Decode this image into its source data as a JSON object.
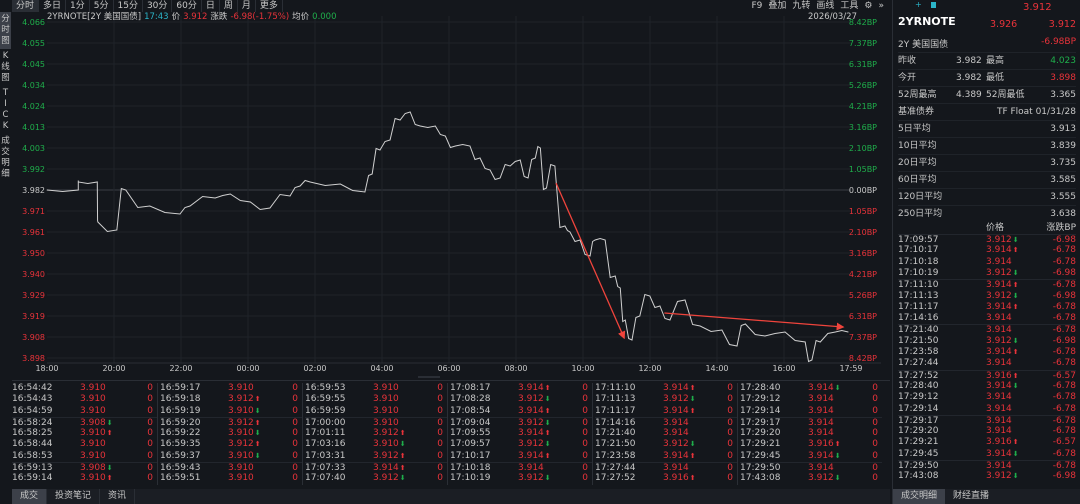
{
  "toolbar": {
    "items": [
      "分时",
      "多日",
      "1分",
      "5分",
      "15分",
      "30分",
      "60分",
      "日",
      "周",
      "月",
      "更多"
    ],
    "right_items": [
      "F9",
      "叠加",
      "九转",
      "画线",
      "工具"
    ]
  },
  "left_tabs": [
    "分\n时\n图",
    "K\n线\n图",
    "T\nI\nC\nK",
    "成\n交\n明\n细"
  ],
  "header": {
    "symbol": "2YRNOTE[2Y 美国国债]",
    "time": "17:43",
    "price_label": "价",
    "price": "3.912",
    "change_label": "涨跌",
    "change": "-6.98(-1.75%)",
    "avg_label": "均价",
    "avg": "0.000",
    "date": "2026/03/27"
  },
  "colors": {
    "up": "#e8333a",
    "down": "#1fae4b",
    "line": "#d0d0d0",
    "arrow": "#f0443c",
    "bg": "#14171c"
  },
  "chart_data": {
    "type": "line",
    "y_ticks": [
      "4.066",
      "4.055",
      "4.045",
      "4.034",
      "4.024",
      "4.013",
      "4.003",
      "3.992",
      "3.982",
      "3.971",
      "3.961",
      "3.950",
      "3.940",
      "3.929",
      "3.919",
      "3.908",
      "3.898"
    ],
    "y_right_ticks": [
      "8.42BP",
      "7.37BP",
      "6.31BP",
      "5.26BP",
      "4.21BP",
      "3.16BP",
      "2.10BP",
      "1.05BP",
      "0.00BP",
      "1.05BP",
      "2.10BP",
      "3.16BP",
      "4.21BP",
      "5.26BP",
      "6.31BP",
      "7.37BP",
      "8.42BP"
    ],
    "x_ticks": [
      "18:00",
      "20:00",
      "22:00",
      "00:00",
      "02:00",
      "04:00",
      "06:00",
      "08:00",
      "10:00",
      "12:00",
      "14:00",
      "16:00",
      "17:59"
    ],
    "ylim": [
      3.898,
      4.066
    ],
    "prev_close": 3.982,
    "grid": true,
    "points": [
      [
        "18:00",
        3.982
      ],
      [
        "18:56",
        3.982
      ],
      [
        "18:56",
        3.986
      ],
      [
        "19:30",
        3.986
      ],
      [
        "19:31",
        3.966
      ],
      [
        "20:05",
        3.962
      ],
      [
        "20:21",
        3.982
      ],
      [
        "21:04",
        3.974
      ],
      [
        "21:58",
        3.97
      ],
      [
        "22:16",
        3.974
      ],
      [
        "23:01",
        3.978
      ],
      [
        "23:28",
        3.98
      ],
      [
        "00:04",
        3.976
      ],
      [
        "00:39",
        3.973
      ],
      [
        "01:15",
        3.979
      ],
      [
        "01:33",
        3.984
      ],
      [
        "01:51",
        3.986
      ],
      [
        "02:45",
        3.985
      ],
      [
        "03:29",
        3.981
      ],
      [
        "03:42",
        3.99
      ],
      [
        "03:56",
        4.002
      ],
      [
        "04:14",
        4.007
      ],
      [
        "04:32",
        4.017
      ],
      [
        "04:50",
        4.021
      ],
      [
        "05:08",
        4.014
      ],
      [
        "05:35",
        4.014
      ],
      [
        "05:53",
        4.009
      ],
      [
        "06:11",
        4.004
      ],
      [
        "06:37",
        4.004
      ],
      [
        "06:55",
        3.998
      ],
      [
        "07:13",
        3.992
      ],
      [
        "07:31",
        3.988
      ],
      [
        "07:49",
        3.994
      ],
      [
        "08:07",
        3.997
      ],
      [
        "08:21",
        3.988
      ],
      [
        "08:34",
        3.998
      ],
      [
        "08:43",
        4.003
      ],
      [
        "08:54",
        3.983
      ],
      [
        "09:09",
        3.994
      ],
      [
        "09:27",
        3.964
      ],
      [
        "09:36",
        3.961
      ],
      [
        "09:54",
        3.957
      ],
      [
        "10:12",
        3.949
      ],
      [
        "10:21",
        3.957
      ],
      [
        "10:39",
        3.957
      ],
      [
        "10:57",
        3.939
      ],
      [
        "11:06",
        3.933
      ],
      [
        "11:15",
        3.917
      ],
      [
        "11:27",
        3.907
      ],
      [
        "11:41",
        3.919
      ],
      [
        "11:59",
        3.929
      ],
      [
        "12:17",
        3.924
      ],
      [
        "12:35",
        3.917
      ],
      [
        "13:02",
        3.927
      ],
      [
        "13:29",
        3.914
      ],
      [
        "14:08",
        3.912
      ],
      [
        "14:35",
        3.904
      ],
      [
        "14:50",
        3.915
      ],
      [
        "15:25",
        3.909
      ],
      [
        "16:01",
        3.911
      ],
      [
        "16:37",
        3.906
      ],
      [
        "16:49",
        3.897
      ],
      [
        "17:04",
        3.906
      ],
      [
        "17:31",
        3.911
      ],
      [
        "17:54",
        3.911
      ]
    ],
    "annotations": [
      {
        "type": "arrow",
        "from": [
          "09:11",
          3.9855
        ],
        "to": [
          "11:13",
          3.908
        ]
      },
      {
        "type": "arrow",
        "from": [
          "12:25",
          3.9205
        ],
        "to": [
          "17:45",
          3.9135
        ]
      }
    ]
  },
  "trades": [
    [
      [
        "16:54:42",
        "3.910",
        ""
      ],
      [
        "16:54:43",
        "3.910",
        ""
      ],
      [
        "16:54:59",
        "3.910",
        ""
      ],
      [
        "16:58:24",
        "3.908",
        "down"
      ],
      [
        "16:58:25",
        "3.910",
        "up"
      ],
      [
        "16:58:44",
        "3.910",
        ""
      ],
      [
        "16:58:53",
        "3.910",
        ""
      ],
      [
        "16:59:13",
        "3.908",
        "down"
      ],
      [
        "16:59:14",
        "3.910",
        "up"
      ]
    ],
    [
      [
        "16:59:17",
        "3.910",
        ""
      ],
      [
        "16:59:18",
        "3.912",
        "up"
      ],
      [
        "16:59:19",
        "3.910",
        "down"
      ],
      [
        "16:59:20",
        "3.912",
        "up"
      ],
      [
        "16:59:22",
        "3.910",
        "down"
      ],
      [
        "16:59:35",
        "3.912",
        "up"
      ],
      [
        "16:59:37",
        "3.910",
        "down"
      ],
      [
        "16:59:43",
        "3.910",
        ""
      ],
      [
        "16:59:51",
        "3.910",
        ""
      ]
    ],
    [
      [
        "16:59:53",
        "3.910",
        ""
      ],
      [
        "16:59:55",
        "3.910",
        ""
      ],
      [
        "16:59:59",
        "3.910",
        ""
      ],
      [
        "17:00:00",
        "3.910",
        ""
      ],
      [
        "17:01:11",
        "3.912",
        "up"
      ],
      [
        "17:03:16",
        "3.910",
        "down"
      ],
      [
        "17:03:31",
        "3.912",
        "up"
      ],
      [
        "17:07:33",
        "3.914",
        "up"
      ],
      [
        "17:07:40",
        "3.912",
        "down"
      ]
    ],
    [
      [
        "17:08:17",
        "3.914",
        "up"
      ],
      [
        "17:08:28",
        "3.912",
        "down"
      ],
      [
        "17:08:54",
        "3.914",
        "up"
      ],
      [
        "17:09:04",
        "3.912",
        "down"
      ],
      [
        "17:09:55",
        "3.914",
        "up"
      ],
      [
        "17:09:57",
        "3.912",
        "down"
      ],
      [
        "17:10:17",
        "3.914",
        "up"
      ],
      [
        "17:10:18",
        "3.914",
        ""
      ],
      [
        "17:10:19",
        "3.912",
        "down"
      ]
    ],
    [
      [
        "17:11:10",
        "3.914",
        "up"
      ],
      [
        "17:11:13",
        "3.912",
        "down"
      ],
      [
        "17:11:17",
        "3.914",
        "up"
      ],
      [
        "17:14:16",
        "3.914",
        ""
      ],
      [
        "17:21:40",
        "3.914",
        ""
      ],
      [
        "17:21:50",
        "3.912",
        "down"
      ],
      [
        "17:23:58",
        "3.914",
        "up"
      ],
      [
        "17:27:44",
        "3.914",
        ""
      ],
      [
        "17:27:52",
        "3.916",
        "up"
      ]
    ],
    [
      [
        "17:28:40",
        "3.914",
        "down"
      ],
      [
        "17:29:12",
        "3.914",
        ""
      ],
      [
        "17:29:14",
        "3.914",
        ""
      ],
      [
        "17:29:17",
        "3.914",
        ""
      ],
      [
        "17:29:20",
        "3.914",
        ""
      ],
      [
        "17:29:21",
        "3.916",
        "up"
      ],
      [
        "17:29:45",
        "3.914",
        "down"
      ],
      [
        "17:29:50",
        "3.914",
        ""
      ],
      [
        "17:43:08",
        "3.912",
        "down"
      ]
    ]
  ],
  "trade_volume": "0",
  "bottom_tabs": [
    "成交",
    "投资笔记",
    "资讯"
  ],
  "quote": {
    "last": "3.912",
    "name": "2YRNOTE",
    "bid": "3.926",
    "ask": "3.912",
    "desc": "2Y 美国国债",
    "change_bp": "-6.98BP",
    "stats": [
      [
        "昨收",
        "3.982",
        "最高",
        "4.023"
      ],
      [
        "今开",
        "3.982",
        "最低",
        "3.898"
      ],
      [
        "52周最高",
        "4.389",
        "52周最低",
        "3.365"
      ]
    ],
    "benchmark_label": "基准债券",
    "benchmark": "TF Float 01/31/28",
    "averages": [
      [
        "5日平均",
        "3.913"
      ],
      [
        "10日平均",
        "3.839"
      ],
      [
        "20日平均",
        "3.735"
      ],
      [
        "60日平均",
        "3.585"
      ],
      [
        "120日平均",
        "3.555"
      ],
      [
        "250日平均",
        "3.638"
      ]
    ]
  },
  "ticks_header": {
    "price": "价格",
    "change": "涨跌BP"
  },
  "ticks": [
    [
      "17:09:57",
      "3.912",
      "down",
      "-6.98"
    ],
    [
      "17:10:17",
      "3.914",
      "up",
      "-6.78"
    ],
    [
      "17:10:18",
      "3.914",
      "",
      "-6.78"
    ],
    [
      "17:10:19",
      "3.912",
      "down",
      "-6.98"
    ],
    [
      "17:11:10",
      "3.914",
      "up",
      "-6.78"
    ],
    [
      "17:11:13",
      "3.912",
      "down",
      "-6.98"
    ],
    [
      "17:11:17",
      "3.914",
      "up",
      "-6.78"
    ],
    [
      "17:14:16",
      "3.914",
      "",
      "-6.78"
    ],
    [
      "17:21:40",
      "3.914",
      "",
      "-6.78"
    ],
    [
      "17:21:50",
      "3.912",
      "down",
      "-6.98"
    ],
    [
      "17:23:58",
      "3.914",
      "up",
      "-6.78"
    ],
    [
      "17:27:44",
      "3.914",
      "",
      "-6.78"
    ],
    [
      "17:27:52",
      "3.916",
      "up",
      "-6.57"
    ],
    [
      "17:28:40",
      "3.914",
      "down",
      "-6.78"
    ],
    [
      "17:29:12",
      "3.914",
      "",
      "-6.78"
    ],
    [
      "17:29:14",
      "3.914",
      "",
      "-6.78"
    ],
    [
      "17:29:17",
      "3.914",
      "",
      "-6.78"
    ],
    [
      "17:29:20",
      "3.914",
      "",
      "-6.78"
    ],
    [
      "17:29:21",
      "3.916",
      "up",
      "-6.57"
    ],
    [
      "17:29:45",
      "3.914",
      "down",
      "-6.78"
    ],
    [
      "17:29:50",
      "3.914",
      "",
      "-6.78"
    ],
    [
      "17:43:08",
      "3.912",
      "down",
      "-6.98"
    ]
  ],
  "right_tabs": [
    "成交明细",
    "财经直播"
  ]
}
